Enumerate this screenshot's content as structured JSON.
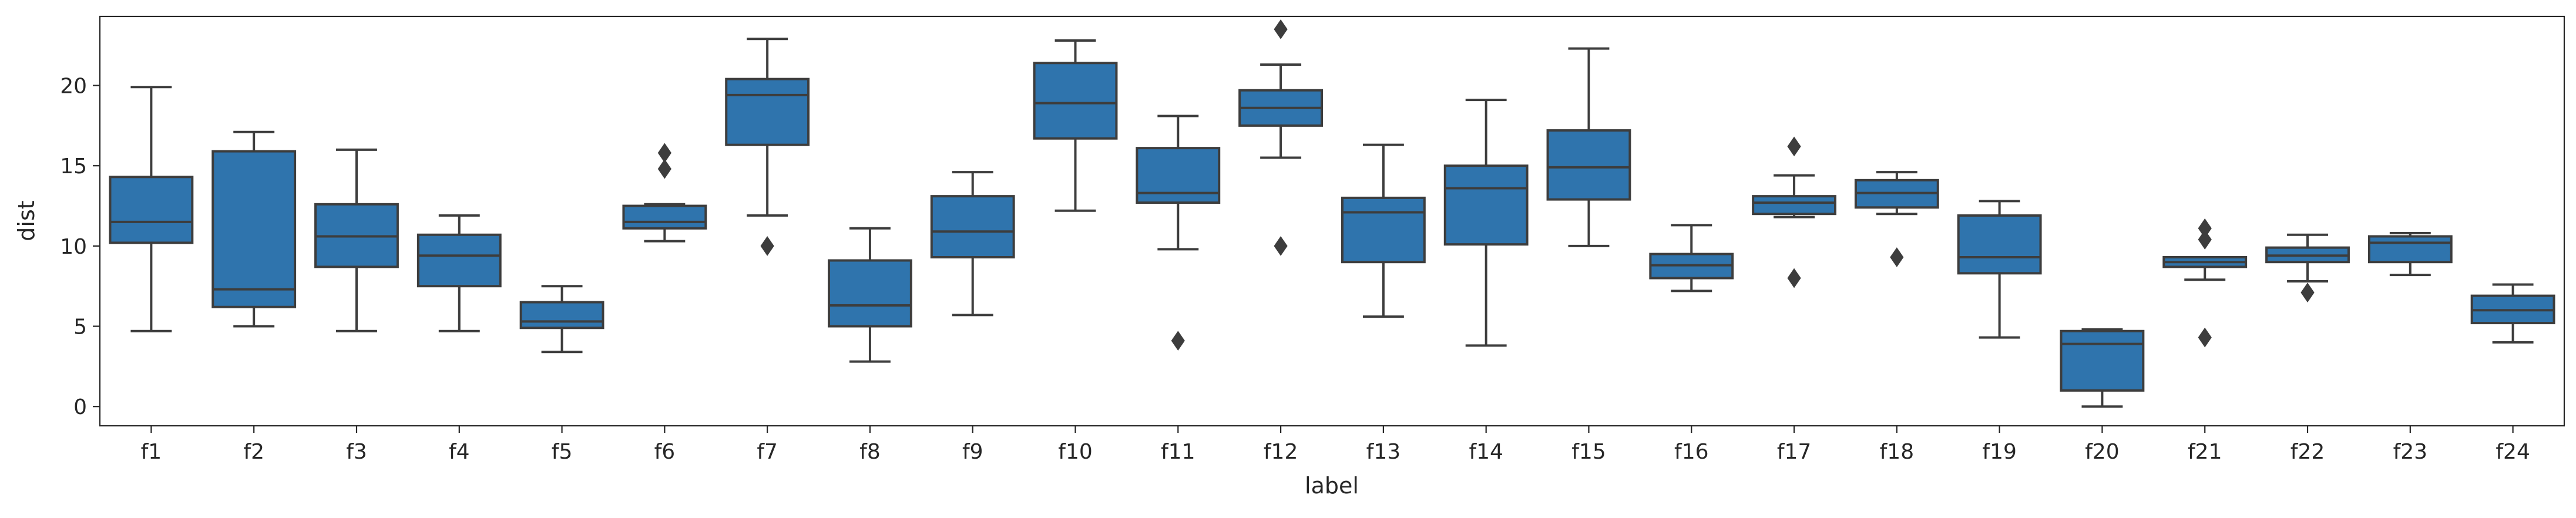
{
  "chart_data": {
    "type": "box",
    "xlabel": "label",
    "ylabel": "dist",
    "ylim": [
      -1.2,
      24.3
    ],
    "yticks": [
      0,
      5,
      10,
      15,
      20
    ],
    "grid": false,
    "colors": {
      "box_fill": "#2f74ad",
      "line": "#3d3d3d",
      "axis": "#262626"
    },
    "categories": [
      "f1",
      "f2",
      "f3",
      "f4",
      "f5",
      "f6",
      "f7",
      "f8",
      "f9",
      "f10",
      "f11",
      "f12",
      "f13",
      "f14",
      "f15",
      "f16",
      "f17",
      "f18",
      "f19",
      "f20",
      "f21",
      "f22",
      "f23",
      "f24"
    ],
    "boxes": [
      {
        "label": "f1",
        "whisker_low": 4.7,
        "q1": 10.2,
        "median": 11.5,
        "q3": 14.3,
        "whisker_high": 19.9,
        "outliers": []
      },
      {
        "label": "f2",
        "whisker_low": 5.0,
        "q1": 6.2,
        "median": 7.3,
        "q3": 15.9,
        "whisker_high": 17.1,
        "outliers": []
      },
      {
        "label": "f3",
        "whisker_low": 4.7,
        "q1": 8.7,
        "median": 10.6,
        "q3": 12.6,
        "whisker_high": 16.0,
        "outliers": []
      },
      {
        "label": "f4",
        "whisker_low": 4.7,
        "q1": 7.5,
        "median": 9.4,
        "q3": 10.7,
        "whisker_high": 11.9,
        "outliers": []
      },
      {
        "label": "f5",
        "whisker_low": 3.4,
        "q1": 4.9,
        "median": 5.3,
        "q3": 6.5,
        "whisker_high": 7.5,
        "outliers": []
      },
      {
        "label": "f6",
        "whisker_low": 10.3,
        "q1": 11.1,
        "median": 11.5,
        "q3": 12.5,
        "whisker_high": 12.6,
        "outliers": [
          14.8,
          15.8
        ]
      },
      {
        "label": "f7",
        "whisker_low": 11.9,
        "q1": 16.3,
        "median": 19.4,
        "q3": 20.4,
        "whisker_high": 22.9,
        "outliers": [
          10.0
        ]
      },
      {
        "label": "f8",
        "whisker_low": 2.8,
        "q1": 5.0,
        "median": 6.3,
        "q3": 9.1,
        "whisker_high": 11.1,
        "outliers": []
      },
      {
        "label": "f9",
        "whisker_low": 5.7,
        "q1": 9.3,
        "median": 10.9,
        "q3": 13.1,
        "whisker_high": 14.6,
        "outliers": []
      },
      {
        "label": "f10",
        "whisker_low": 12.2,
        "q1": 16.7,
        "median": 18.9,
        "q3": 21.4,
        "whisker_high": 22.8,
        "outliers": []
      },
      {
        "label": "f11",
        "whisker_low": 9.8,
        "q1": 12.7,
        "median": 13.3,
        "q3": 16.1,
        "whisker_high": 18.1,
        "outliers": [
          4.1
        ]
      },
      {
        "label": "f12",
        "whisker_low": 15.5,
        "q1": 17.5,
        "median": 18.6,
        "q3": 19.7,
        "whisker_high": 21.3,
        "outliers": [
          10.0,
          23.5
        ]
      },
      {
        "label": "f13",
        "whisker_low": 5.6,
        "q1": 9.0,
        "median": 12.1,
        "q3": 13.0,
        "whisker_high": 16.3,
        "outliers": []
      },
      {
        "label": "f14",
        "whisker_low": 3.8,
        "q1": 10.1,
        "median": 13.6,
        "q3": 15.0,
        "whisker_high": 19.1,
        "outliers": []
      },
      {
        "label": "f15",
        "whisker_low": 10.0,
        "q1": 12.9,
        "median": 14.9,
        "q3": 17.2,
        "whisker_high": 22.3,
        "outliers": []
      },
      {
        "label": "f16",
        "whisker_low": 7.2,
        "q1": 8.0,
        "median": 8.8,
        "q3": 9.5,
        "whisker_high": 11.3,
        "outliers": []
      },
      {
        "label": "f17",
        "whisker_low": 11.8,
        "q1": 12.0,
        "median": 12.7,
        "q3": 13.1,
        "whisker_high": 14.4,
        "outliers": [
          8.0,
          16.2
        ]
      },
      {
        "label": "f18",
        "whisker_low": 12.0,
        "q1": 12.4,
        "median": 13.3,
        "q3": 14.1,
        "whisker_high": 14.6,
        "outliers": [
          9.3
        ]
      },
      {
        "label": "f19",
        "whisker_low": 4.3,
        "q1": 8.3,
        "median": 9.3,
        "q3": 11.9,
        "whisker_high": 12.8,
        "outliers": []
      },
      {
        "label": "f20",
        "whisker_low": 0.0,
        "q1": 1.0,
        "median": 3.9,
        "q3": 4.7,
        "whisker_high": 4.8,
        "outliers": []
      },
      {
        "label": "f21",
        "whisker_low": 7.9,
        "q1": 8.7,
        "median": 9.0,
        "q3": 9.3,
        "whisker_high": 9.3,
        "outliers": [
          4.3,
          10.4,
          11.1
        ]
      },
      {
        "label": "f22",
        "whisker_low": 7.8,
        "q1": 9.0,
        "median": 9.4,
        "q3": 9.9,
        "whisker_high": 10.7,
        "outliers": [
          7.1
        ]
      },
      {
        "label": "f23",
        "whisker_low": 8.2,
        "q1": 9.0,
        "median": 10.2,
        "q3": 10.6,
        "whisker_high": 10.8,
        "outliers": []
      },
      {
        "label": "f24",
        "whisker_low": 4.0,
        "q1": 5.2,
        "median": 6.0,
        "q3": 6.9,
        "whisker_high": 7.6,
        "outliers": []
      }
    ]
  }
}
